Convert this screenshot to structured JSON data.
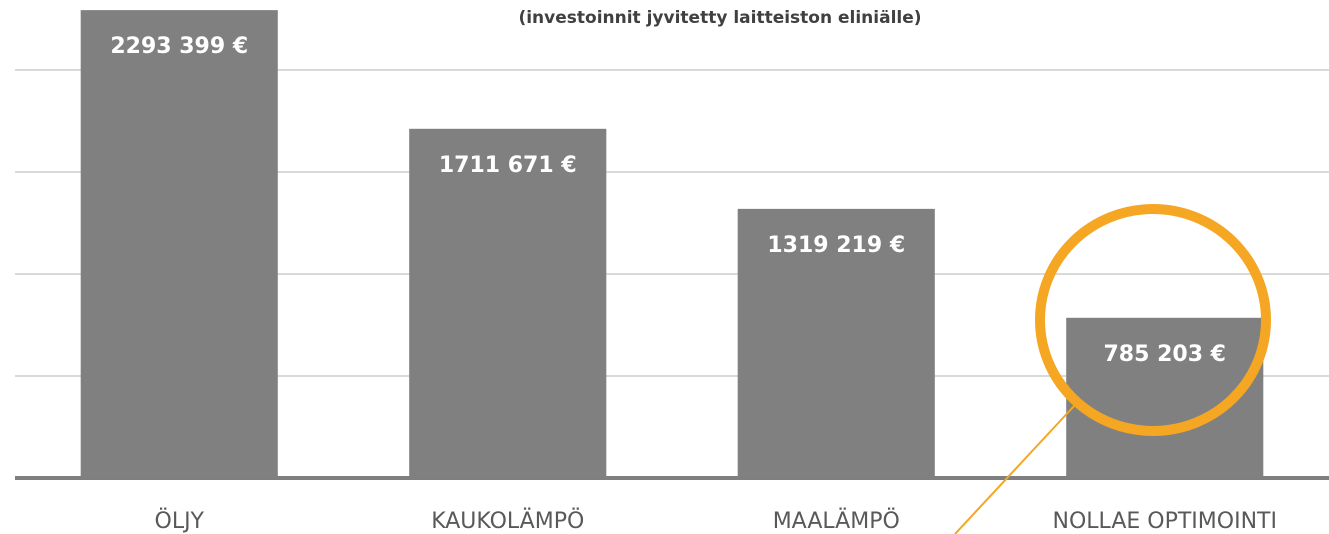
{
  "chart_data": {
    "type": "bar",
    "subtitle": "(investoinnit jyvitetty laitteiston eliniälle)",
    "categories": [
      "ÖLJY",
      "KAUKOLÄMPÖ",
      "MAALÄMPÖ",
      "NOLLAE OPTIMOINTI"
    ],
    "values": [
      2293399,
      1711671,
      1319219,
      785203
    ],
    "value_labels": [
      "2293 399 €",
      "1711 671 €",
      "1319 219 €",
      "785 203 €"
    ],
    "color": "#808080",
    "ylim": [
      0,
      2343000
    ],
    "yticks": [
      0,
      500000,
      1000000,
      1500000,
      2000000
    ],
    "grid": true
  }
}
